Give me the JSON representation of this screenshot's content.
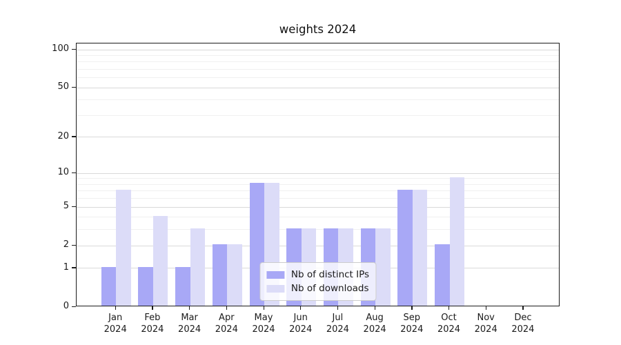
{
  "chart_data": {
    "type": "bar",
    "title": "weights 2024",
    "categories": [
      "Jan",
      "Feb",
      "Mar",
      "Apr",
      "May",
      "Jun",
      "Jul",
      "Aug",
      "Sep",
      "Oct",
      "Nov",
      "Dec"
    ],
    "x_year_label": "2024",
    "series": [
      {
        "name": "Nb of distinct IPs",
        "color": "#a8a8f6",
        "values": [
          1,
          1,
          1,
          2,
          8,
          3,
          3,
          3,
          7,
          2,
          0,
          0
        ]
      },
      {
        "name": "Nb of downloads",
        "color": "#dcdcf8",
        "values": [
          7,
          4,
          3,
          2,
          8,
          3,
          3,
          3,
          7,
          9,
          0,
          0
        ]
      }
    ],
    "y_scale": "log1p",
    "y_ticks": [
      0,
      1,
      2,
      5,
      10,
      20,
      50,
      100
    ],
    "y_minor_ticks": [
      3,
      4,
      6,
      7,
      8,
      9,
      30,
      40,
      60,
      70,
      80,
      90
    ],
    "ylim": [
      0,
      112
    ],
    "grid": true,
    "legend_position": "lower center",
    "colors": {
      "major_grid": "#d9d9d9",
      "minor_grid": "#f0f0f0",
      "axis": "#1a1a1a",
      "background": "#ffffff"
    }
  }
}
